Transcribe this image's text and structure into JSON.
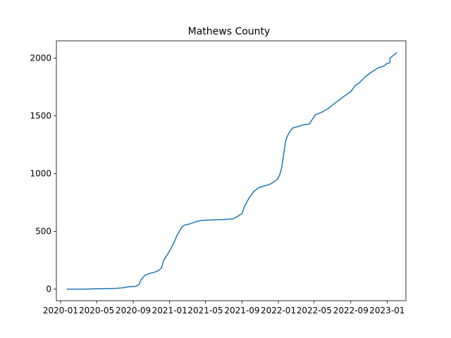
{
  "chart_data": {
    "type": "line",
    "title": "Mathews County",
    "xlabel": "",
    "ylabel": "",
    "xlim": [
      "2019-12-18",
      "2023-03-05"
    ],
    "ylim": [
      -100,
      2150
    ],
    "x_ticks": [
      "2020-01",
      "2020-05",
      "2020-09",
      "2021-01",
      "2021-05",
      "2021-09",
      "2022-01",
      "2022-05",
      "2022-09",
      "2023-01"
    ],
    "y_ticks": [
      0,
      500,
      1000,
      1500,
      2000
    ],
    "grid": false,
    "legend": "none",
    "series": [
      {
        "color": "#1f77b4",
        "points": [
          [
            "2020-01-22",
            0
          ],
          [
            "2020-03-20",
            0
          ],
          [
            "2020-04-15",
            2
          ],
          [
            "2020-05-10",
            4
          ],
          [
            "2020-06-10",
            5
          ],
          [
            "2020-07-05",
            7
          ],
          [
            "2020-07-30",
            12
          ],
          [
            "2020-08-15",
            20
          ],
          [
            "2020-08-30",
            22
          ],
          [
            "2020-09-10",
            25
          ],
          [
            "2020-09-20",
            40
          ],
          [
            "2020-09-27",
            80
          ],
          [
            "2020-10-10",
            120
          ],
          [
            "2020-10-25",
            135
          ],
          [
            "2020-11-10",
            145
          ],
          [
            "2020-11-25",
            160
          ],
          [
            "2020-12-05",
            185
          ],
          [
            "2020-12-12",
            250
          ],
          [
            "2020-12-25",
            300
          ],
          [
            "2021-01-05",
            350
          ],
          [
            "2021-01-15",
            400
          ],
          [
            "2021-01-25",
            460
          ],
          [
            "2021-02-05",
            510
          ],
          [
            "2021-02-12",
            540
          ],
          [
            "2021-02-20",
            555
          ],
          [
            "2021-03-10",
            565
          ],
          [
            "2021-04-01",
            585
          ],
          [
            "2021-04-20",
            595
          ],
          [
            "2021-05-10",
            598
          ],
          [
            "2021-06-01",
            600
          ],
          [
            "2021-07-01",
            603
          ],
          [
            "2021-08-01",
            608
          ],
          [
            "2021-08-15",
            625
          ],
          [
            "2021-09-01",
            655
          ],
          [
            "2021-09-10",
            720
          ],
          [
            "2021-09-25",
            790
          ],
          [
            "2021-10-10",
            845
          ],
          [
            "2021-10-25",
            875
          ],
          [
            "2021-11-10",
            890
          ],
          [
            "2021-12-01",
            905
          ],
          [
            "2021-12-15",
            925
          ],
          [
            "2021-12-28",
            950
          ],
          [
            "2022-01-05",
            985
          ],
          [
            "2022-01-12",
            1050
          ],
          [
            "2022-01-18",
            1150
          ],
          [
            "2022-01-25",
            1280
          ],
          [
            "2022-02-01",
            1330
          ],
          [
            "2022-02-10",
            1370
          ],
          [
            "2022-02-18",
            1395
          ],
          [
            "2022-03-10",
            1410
          ],
          [
            "2022-03-25",
            1422
          ],
          [
            "2022-04-15",
            1430
          ],
          [
            "2022-04-25",
            1470
          ],
          [
            "2022-05-05",
            1510
          ],
          [
            "2022-05-25",
            1530
          ],
          [
            "2022-06-15",
            1560
          ],
          [
            "2022-07-05",
            1600
          ],
          [
            "2022-07-25",
            1640
          ],
          [
            "2022-08-15",
            1680
          ],
          [
            "2022-09-01",
            1710
          ],
          [
            "2022-09-15",
            1760
          ],
          [
            "2022-10-01",
            1790
          ],
          [
            "2022-10-20",
            1840
          ],
          [
            "2022-11-10",
            1880
          ],
          [
            "2022-11-25",
            1905
          ],
          [
            "2022-12-05",
            1920
          ],
          [
            "2022-12-20",
            1930
          ],
          [
            "2023-01-01",
            1955
          ],
          [
            "2023-01-10",
            1960
          ],
          [
            "2023-01-11",
            2000
          ],
          [
            "2023-01-20",
            2020
          ],
          [
            "2023-01-27",
            2035
          ],
          [
            "2023-02-03",
            2048
          ]
        ]
      }
    ]
  }
}
